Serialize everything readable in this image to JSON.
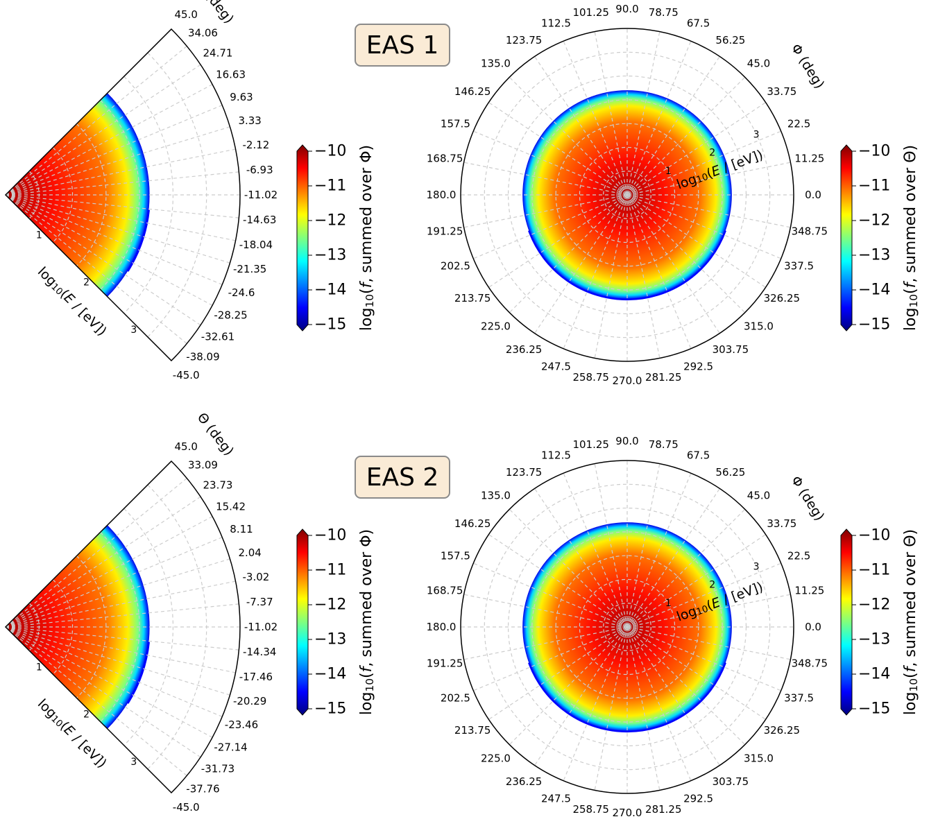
{
  "chart_data": [
    {
      "panel": "EAS 1",
      "type": "heatmap",
      "label": "EAS 1",
      "projection": "polar-sector",
      "theta_label": "Θ (deg)",
      "theta_ticks": [
        "45.0",
        "34.06",
        "24.71",
        "16.63",
        "9.63",
        "3.33",
        "-2.12",
        "-6.93",
        "-11.02",
        "-14.63",
        "-18.04",
        "-21.35",
        "-24.6",
        "-28.25",
        "-32.61",
        "-38.09",
        "-45.0"
      ],
      "r_label": "log10(E / [eV])",
      "r_ticks": [
        "1",
        "2",
        "3"
      ],
      "r_range": [
        0,
        3.5
      ],
      "theta_range_deg": [
        -45,
        45
      ],
      "colorbar": {
        "label": "log10(f, summed over Φ)",
        "ticks": [
          "−10",
          "−11",
          "−12",
          "−13",
          "−14",
          "−15"
        ],
        "range": [
          -15,
          -10
        ]
      },
      "field_edge_log10E": 2.15,
      "grid": true
    },
    {
      "panel": "EAS 1",
      "type": "heatmap",
      "projection": "polar-full",
      "phi_label": "Φ (deg)",
      "phi_ticks": [
        "0.0",
        "11.25",
        "22.5",
        "33.75",
        "45.0",
        "56.25",
        "67.5",
        "78.75",
        "90.0",
        "101.25",
        "112.5",
        "123.75",
        "135.0",
        "146.25",
        "157.5",
        "168.75",
        "180.0",
        "191.25",
        "202.5",
        "213.75",
        "225.0",
        "236.25",
        "247.5",
        "258.75",
        "270.0",
        "281.25",
        "292.5",
        "303.75",
        "315.0",
        "326.25",
        "337.5",
        "348.75"
      ],
      "r_label": "log10(E / [eV])",
      "r_ticks": [
        "1",
        "2",
        "3"
      ],
      "r_range": [
        0,
        3.5
      ],
      "colorbar": {
        "label": "log10(f, summed over Θ)",
        "ticks": [
          "−10",
          "−11",
          "−12",
          "−13",
          "−14",
          "−15"
        ],
        "range": [
          -15,
          -10
        ]
      },
      "field_edge_log10E": 2.2,
      "grid": true
    },
    {
      "panel": "EAS 2",
      "type": "heatmap",
      "label": "EAS 2",
      "projection": "polar-sector",
      "theta_label": "Θ (deg)",
      "theta_ticks": [
        "45.0",
        "33.09",
        "23.73",
        "15.42",
        "8.11",
        "2.04",
        "-3.02",
        "-7.37",
        "-11.02",
        "-14.34",
        "-17.46",
        "-20.29",
        "-23.46",
        "-27.14",
        "-31.73",
        "-37.76",
        "-45.0"
      ],
      "r_label": "log10(E / [eV])",
      "r_ticks": [
        "1",
        "2",
        "3"
      ],
      "r_range": [
        0,
        3.5
      ],
      "theta_range_deg": [
        -45,
        45
      ],
      "colorbar": {
        "label": "log10(f, summed over Φ)",
        "ticks": [
          "−10",
          "−11",
          "−12",
          "−13",
          "−14",
          "−15"
        ],
        "range": [
          -15,
          -10
        ]
      },
      "field_edge_log10E": 2.15,
      "grid": true
    },
    {
      "panel": "EAS 2",
      "type": "heatmap",
      "projection": "polar-full",
      "phi_label": "Φ (deg)",
      "phi_ticks": [
        "0.0",
        "11.25",
        "22.5",
        "33.75",
        "45.0",
        "56.25",
        "67.5",
        "78.75",
        "90.0",
        "101.25",
        "112.5",
        "123.75",
        "135.0",
        "146.25",
        "157.5",
        "168.75",
        "180.0",
        "191.25",
        "202.5",
        "213.75",
        "225.0",
        "236.25",
        "247.5",
        "258.75",
        "270.0",
        "281.25",
        "292.5",
        "303.75",
        "315.0",
        "326.25",
        "337.5",
        "348.75"
      ],
      "r_label": "log10(E / [eV])",
      "r_ticks": [
        "1",
        "2",
        "3"
      ],
      "r_range": [
        0,
        3.5
      ],
      "colorbar": {
        "label": "log10(f, summed over Θ)",
        "ticks": [
          "−10",
          "−11",
          "−12",
          "−13",
          "−14",
          "−15"
        ],
        "range": [
          -15,
          -10
        ]
      },
      "field_edge_log10E": 2.2,
      "grid": true
    }
  ],
  "colors": {
    "jet": [
      "#00007f",
      "#0000ff",
      "#007fff",
      "#00ffff",
      "#7fff7f",
      "#ffff00",
      "#ff7f00",
      "#ff0000",
      "#7f0000"
    ],
    "grid": "#cccccc",
    "label_box_fill": "#faebd6",
    "label_box_edge": "#8a8a8a"
  }
}
